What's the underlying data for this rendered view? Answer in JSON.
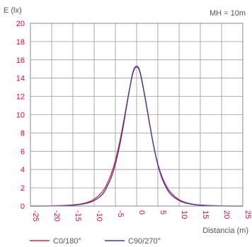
{
  "chart_data": {
    "type": "line",
    "ylabel": "E (lx)",
    "xlabel": "Distancia (m)",
    "annotation": "MH = 10m",
    "xlim": [
      -25,
      25
    ],
    "ylim": [
      0,
      20
    ],
    "x_ticks": [
      -25,
      -20,
      -15,
      -10,
      -5,
      0,
      5,
      10,
      15,
      20,
      25
    ],
    "y_ticks": [
      0,
      2,
      4,
      6,
      8,
      10,
      12,
      14,
      16,
      18,
      20
    ],
    "x_tick_labels": [
      "-25",
      "-20",
      "-15",
      "-10",
      "-5",
      "0",
      "5",
      "10",
      "15",
      "20",
      "25"
    ],
    "y_tick_labels": [
      "0",
      "2",
      "4",
      "6",
      "8",
      "10",
      "12",
      "14",
      "16",
      "18",
      "20"
    ],
    "grid": true,
    "legend_position": "bottom",
    "series": [
      {
        "name": "C0/180°",
        "color": "#e0203a",
        "x": [
          -25,
          -20,
          -15,
          -12,
          -10,
          -8,
          -7,
          -6,
          -5,
          -4,
          -3,
          -2,
          -1,
          -0.5,
          0,
          0.5,
          1,
          2,
          3,
          4,
          5,
          6,
          7,
          8,
          10,
          12,
          15,
          20,
          25
        ],
        "y": [
          0.0,
          0.02,
          0.12,
          0.35,
          0.75,
          1.6,
          2.4,
          3.5,
          5.0,
          7.0,
          9.4,
          12.0,
          14.3,
          15.0,
          15.2,
          15.0,
          14.2,
          11.8,
          9.1,
          6.6,
          4.6,
          3.2,
          2.2,
          1.5,
          0.7,
          0.33,
          0.11,
          0.02,
          0.0
        ]
      },
      {
        "name": "C90/270°",
        "color": "#3a3aa0",
        "x": [
          -25,
          -20,
          -15,
          -12,
          -10,
          -8,
          -7,
          -6,
          -5,
          -4,
          -3,
          -2,
          -1,
          -0.5,
          0,
          0.5,
          1,
          2,
          3,
          4,
          5,
          6,
          7,
          8,
          10,
          12,
          15,
          20,
          25
        ],
        "y": [
          0.0,
          0.01,
          0.09,
          0.28,
          0.6,
          1.3,
          2.1,
          3.1,
          4.6,
          6.6,
          9.1,
          11.9,
          14.4,
          15.1,
          15.3,
          15.1,
          14.3,
          11.9,
          9.2,
          6.6,
          4.5,
          3.0,
          2.0,
          1.3,
          0.6,
          0.28,
          0.09,
          0.01,
          0.0
        ]
      }
    ]
  }
}
